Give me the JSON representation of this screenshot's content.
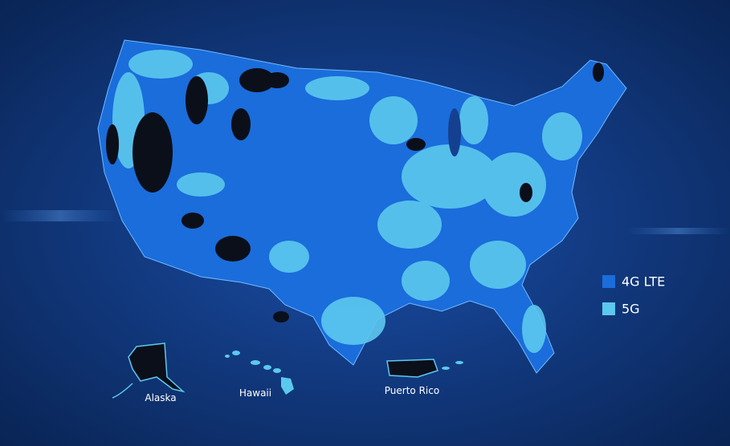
{
  "legend": {
    "items": [
      {
        "label": "4G LTE",
        "color": "#1a6ddb"
      },
      {
        "label": "5G",
        "color": "#5cc8ee"
      }
    ]
  },
  "labels": {
    "alaska": "Alaska",
    "hawaii": "Hawaii",
    "puerto_rico": "Puerto Rico"
  }
}
